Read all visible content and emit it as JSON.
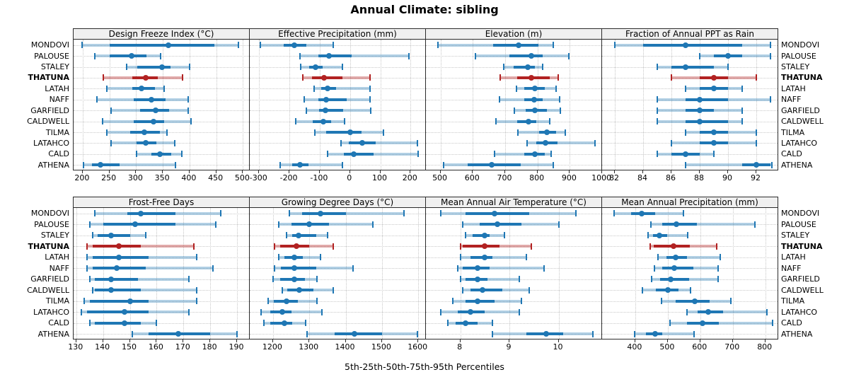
{
  "title": "Annual Climate: sibling",
  "caption": "5th-25th-50th-75th-95th Percentiles",
  "sites": [
    "MONDOVI",
    "PALOUSE",
    "STALEY",
    "THATUNA",
    "LATAH",
    "NAFF",
    "GARFIELD",
    "CALDWELL",
    "TILMA",
    "LATAHCO",
    "CALD",
    "ATHENA"
  ],
  "highlight_site": "THATUNA",
  "percentile_labels": [
    "5th",
    "25th",
    "50th",
    "75th",
    "95th"
  ],
  "colors": {
    "series_blue": "#1f77b4",
    "series_blue_light": "rgba(31,119,180,0.35)",
    "highlight_red": "#b22222",
    "highlight_red_light": "rgba(178,34,34,0.38)",
    "grid": "#c6c6c6",
    "panel_border": "#2b2b2b",
    "header_bg": "#f0f0f0"
  },
  "chart_data": [
    {
      "type": "dotplot-interval",
      "title": "Design Freeze Index (°C)",
      "xlim": [
        183,
        514
      ],
      "ticks": [
        200,
        250,
        300,
        350,
        400,
        450,
        500
      ],
      "values": [
        [
          199,
          250,
          360,
          447,
          492
        ],
        [
          223,
          251,
          291,
          320,
          346
        ],
        [
          282,
          302,
          349,
          364,
          400
        ],
        [
          239,
          293,
          318,
          341,
          387
        ],
        [
          245,
          293,
          310,
          335,
          353
        ],
        [
          227,
          296,
          329,
          355,
          397
        ],
        [
          253,
          308,
          337,
          362,
          398
        ],
        [
          237,
          296,
          333,
          352,
          403
        ],
        [
          245,
          289,
          315,
          345,
          358
        ],
        [
          253,
          301,
          318,
          338,
          372
        ],
        [
          301,
          329,
          344,
          366,
          385
        ],
        [
          202,
          218,
          233,
          269,
          374
        ]
      ]
    },
    {
      "type": "dotplot-interval",
      "title": "Effective Precipitation (mm)",
      "xlim": [
        -331,
        253
      ],
      "ticks": [
        -300,
        -200,
        -100,
        0,
        100,
        200
      ],
      "values": [
        [
          -295,
          -220,
          -185,
          -145,
          -55
        ],
        [
          -165,
          -105,
          -70,
          5,
          195
        ],
        [
          -163,
          -135,
          -113,
          -90,
          -25
        ],
        [
          -155,
          -125,
          -85,
          -25,
          65
        ],
        [
          -118,
          -95,
          -75,
          -45,
          65
        ],
        [
          -150,
          -105,
          -78,
          -10,
          65
        ],
        [
          -145,
          -103,
          -82,
          -23,
          68
        ],
        [
          -180,
          -122,
          -89,
          -62,
          -18
        ],
        [
          -115,
          -78,
          0,
          38,
          110
        ],
        [
          -30,
          -5,
          40,
          85,
          222
        ],
        [
          -75,
          -20,
          13,
          78,
          225
        ],
        [
          -230,
          -190,
          -165,
          -137,
          -26
        ]
      ]
    },
    {
      "type": "dotplot-interval",
      "title": "Elevation (m)",
      "xlim": [
        455,
        1002
      ],
      "ticks": [
        500,
        600,
        700,
        800,
        900,
        1000
      ],
      "values": [
        [
          493,
          663,
          742,
          802,
          848
        ],
        [
          608,
          713,
          782,
          815,
          898
        ],
        [
          695,
          727,
          770,
          793,
          815
        ],
        [
          685,
          738,
          782,
          837,
          865
        ],
        [
          735,
          760,
          792,
          822,
          858
        ],
        [
          683,
          760,
          789,
          815,
          868
        ],
        [
          729,
          764,
          791,
          830,
          870
        ],
        [
          672,
          738,
          773,
          797,
          837
        ],
        [
          740,
          805,
          830,
          858,
          885
        ],
        [
          768,
          797,
          825,
          862,
          978
        ],
        [
          667,
          760,
          793,
          822,
          843
        ],
        [
          509,
          584,
          658,
          749,
          848
        ]
      ]
    },
    {
      "type": "dotplot-interval",
      "title": "Fraction of Annual PPT as Rain",
      "xlim": [
        81.1,
        93.6
      ],
      "ticks": [
        82,
        84,
        86,
        88,
        90,
        92
      ],
      "values": [
        [
          82,
          84,
          87,
          91,
          93
        ],
        [
          88,
          89,
          90,
          91,
          93
        ],
        [
          85,
          86,
          87,
          89,
          90
        ],
        [
          86,
          88,
          89,
          90,
          92
        ],
        [
          87,
          88,
          89,
          90,
          91
        ],
        [
          85,
          87,
          88,
          90,
          93
        ],
        [
          85,
          87,
          88,
          89,
          91
        ],
        [
          85,
          87,
          88,
          90,
          91
        ],
        [
          87,
          88,
          89,
          90,
          92
        ],
        [
          86,
          88,
          89,
          90,
          92
        ],
        [
          85,
          86,
          87,
          88,
          89
        ],
        [
          87,
          91,
          92,
          93,
          93.1
        ]
      ]
    },
    {
      "type": "dotplot-interval",
      "title": "Frost-Free Days",
      "xlim": [
        129,
        195
      ],
      "ticks": [
        130,
        140,
        150,
        160,
        170,
        180,
        190
      ],
      "values": [
        [
          137,
          149,
          154,
          167,
          184
        ],
        [
          135,
          140,
          152,
          167,
          182
        ],
        [
          136,
          138,
          143,
          150,
          156
        ],
        [
          134,
          136,
          146,
          154,
          174
        ],
        [
          134,
          136,
          146,
          157,
          175
        ],
        [
          134,
          136,
          145,
          156,
          181
        ],
        [
          135,
          137,
          143,
          153,
          172
        ],
        [
          136,
          137,
          143,
          154,
          175
        ],
        [
          133,
          135,
          150,
          157,
          175
        ],
        [
          132,
          134,
          148,
          157,
          172
        ],
        [
          135,
          137,
          148,
          154,
          160
        ],
        [
          151,
          157,
          168,
          180,
          190
        ]
      ]
    },
    {
      "type": "dotplot-interval",
      "title": "Growing Degree Days (°C)",
      "xlim": [
        1136,
        1623
      ],
      "ticks": [
        1200,
        1300,
        1400,
        1500,
        1600
      ],
      "values": [
        [
          1245,
          1280,
          1330,
          1400,
          1560
        ],
        [
          1215,
          1250,
          1300,
          1355,
          1475
        ],
        [
          1238,
          1252,
          1270,
          1320,
          1350
        ],
        [
          1205,
          1220,
          1265,
          1300,
          1365
        ],
        [
          1215,
          1232,
          1258,
          1282,
          1330
        ],
        [
          1205,
          1222,
          1258,
          1320,
          1420
        ],
        [
          1200,
          1220,
          1258,
          1288,
          1322
        ],
        [
          1225,
          1240,
          1272,
          1312,
          1366
        ],
        [
          1186,
          1203,
          1238,
          1269,
          1321
        ],
        [
          1167,
          1193,
          1225,
          1251,
          1334
        ],
        [
          1174,
          1193,
          1231,
          1252,
          1289
        ],
        [
          1293,
          1370,
          1425,
          1500,
          1597
        ]
      ]
    },
    {
      "type": "dotplot-interval",
      "title": "Mean Annual Air Temperature (°C)",
      "xlim": [
        7.3,
        10.9
      ],
      "ticks": [
        8,
        9,
        10
      ],
      "values": [
        [
          7.6,
          8.1,
          8.7,
          9.4,
          10.35
        ],
        [
          8.05,
          8.4,
          8.75,
          9.25,
          10.0
        ],
        [
          8.1,
          8.25,
          8.5,
          8.6,
          8.9
        ],
        [
          8.0,
          8.05,
          8.5,
          8.8,
          9.45
        ],
        [
          8.0,
          8.2,
          8.5,
          8.65,
          9.35
        ],
        [
          7.95,
          8.05,
          8.35,
          8.6,
          9.7
        ],
        [
          8.0,
          8.1,
          8.35,
          8.55,
          9.2
        ],
        [
          8.05,
          8.2,
          8.45,
          8.85,
          9.4
        ],
        [
          7.85,
          8.1,
          8.35,
          8.7,
          9.25
        ],
        [
          7.6,
          7.95,
          8.2,
          8.5,
          9.2
        ],
        [
          7.75,
          7.9,
          8.1,
          8.35,
          8.65
        ],
        [
          8.65,
          9.35,
          9.75,
          10.1,
          10.7
        ]
      ]
    },
    {
      "type": "dotplot-interval",
      "title": "Mean Annual Precipitation (mm)",
      "xlim": [
        298,
        842
      ],
      "ticks": [
        400,
        500,
        600,
        700,
        800
      ],
      "values": [
        [
          335,
          387,
          420,
          462,
          548
        ],
        [
          448,
          483,
          527,
          590,
          768
        ],
        [
          440,
          455,
          475,
          498,
          562
        ],
        [
          445,
          457,
          518,
          568,
          650
        ],
        [
          470,
          496,
          524,
          560,
          662
        ],
        [
          458,
          483,
          520,
          578,
          655
        ],
        [
          450,
          476,
          510,
          565,
          655
        ],
        [
          422,
          463,
          500,
          533,
          570
        ],
        [
          480,
          524,
          582,
          628,
          694
        ],
        [
          560,
          592,
          624,
          670,
          805
        ],
        [
          507,
          560,
          607,
          657,
          823
        ],
        [
          398,
          432,
          461,
          483,
          580
        ]
      ]
    }
  ]
}
